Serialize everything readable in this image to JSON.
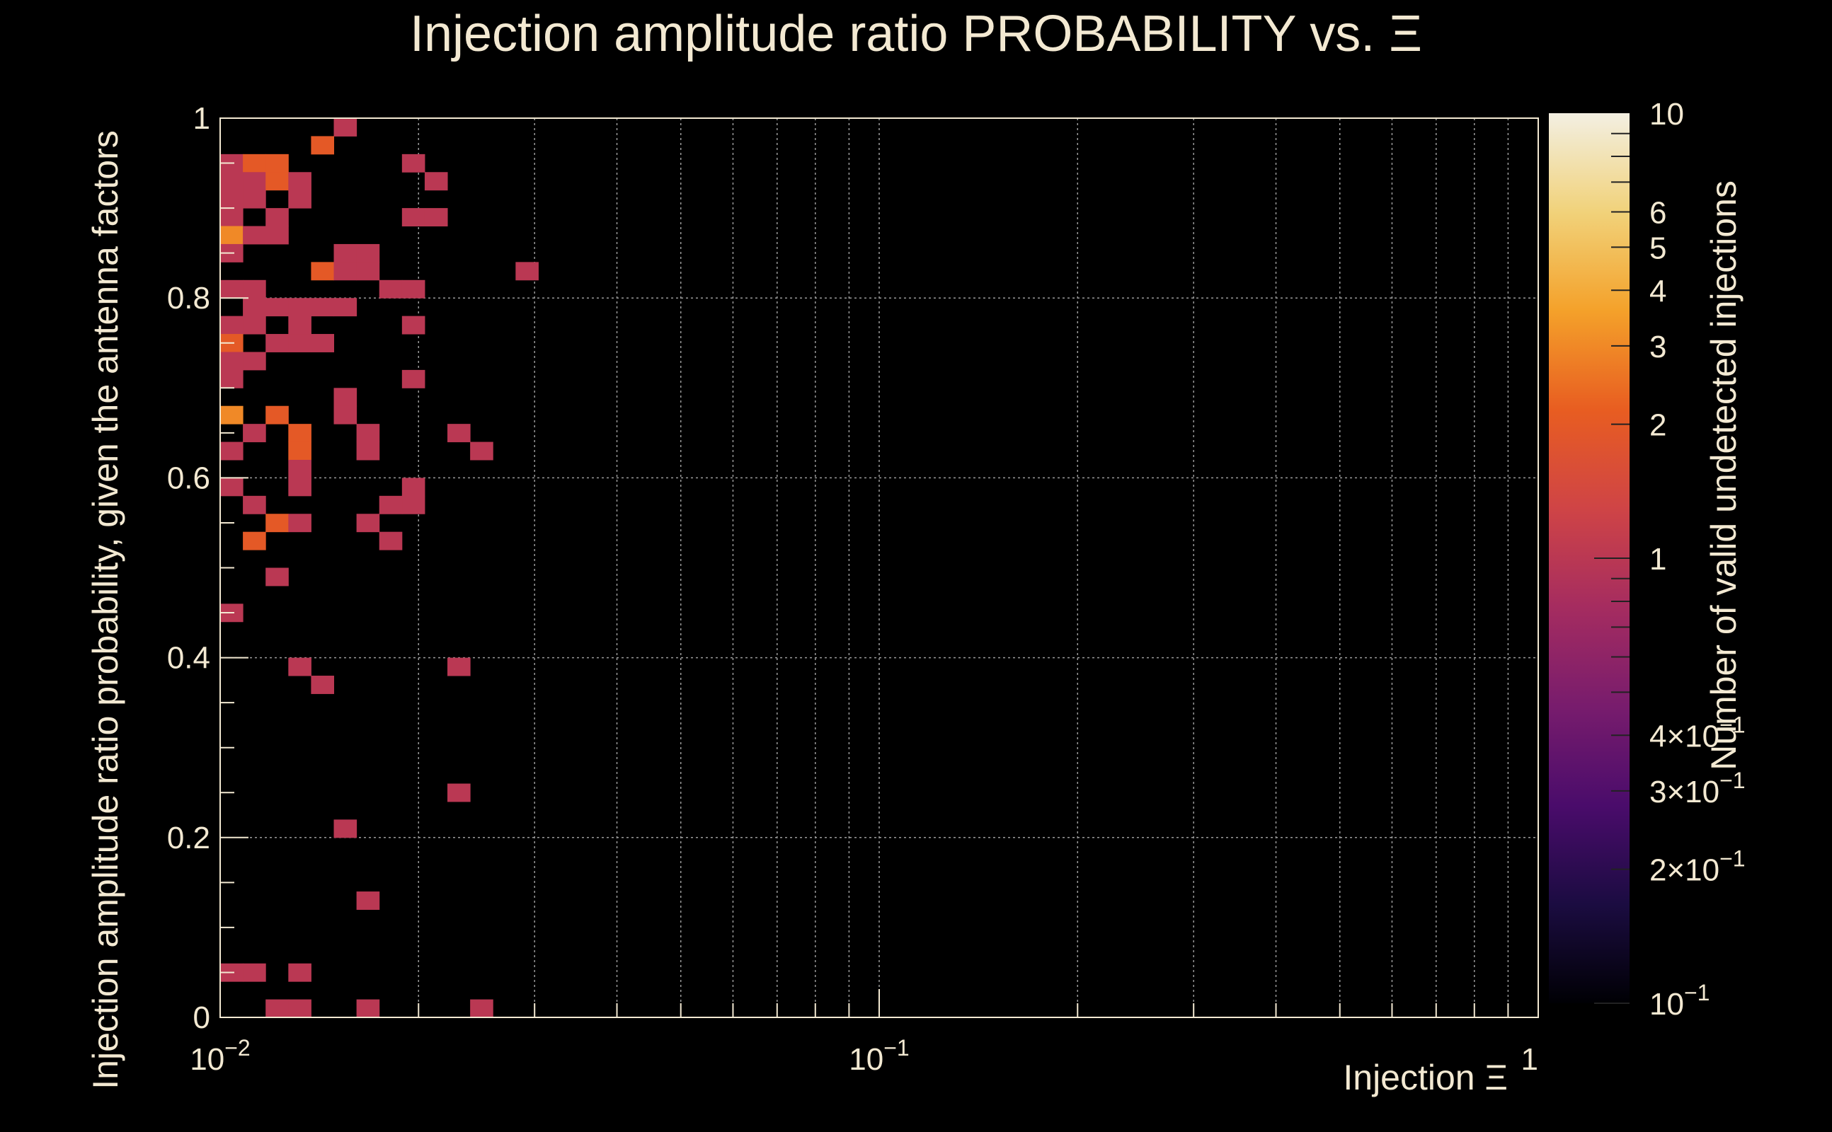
{
  "chart_data": {
    "type": "heatmap",
    "title": "Injection amplitude ratio PROBABILITY vs.  Ξ",
    "xlabel": "Injection Ξ",
    "ylabel": "Injection amplitude ratio probability, given the antenna factors",
    "zlabel": "Number of valid undetected injections",
    "x_scale": "log",
    "xlim": [
      0.01,
      1
    ],
    "ylim": [
      0,
      1
    ],
    "z_scale": "log",
    "zlim": [
      0.1,
      10
    ],
    "grid": true,
    "x_tick_labels": [
      {
        "value": 0.01,
        "base": "10",
        "exp": "−2"
      },
      {
        "value": 0.1,
        "base": "10",
        "exp": "−1"
      },
      {
        "value": 1,
        "base": "1",
        "exp": ""
      }
    ],
    "y_tick_labels": [
      "0",
      "0.2",
      "0.4",
      "0.6",
      "0.8",
      "1"
    ],
    "y_tick_values": [
      0,
      0.2,
      0.4,
      0.6,
      0.8,
      1
    ],
    "z_tick_labels": [
      {
        "value": 10,
        "mantissa": "10",
        "exp": ""
      },
      {
        "value": 6,
        "mantissa": "6",
        "exp": ""
      },
      {
        "value": 5,
        "mantissa": "5",
        "exp": ""
      },
      {
        "value": 4,
        "mantissa": "4",
        "exp": ""
      },
      {
        "value": 3,
        "mantissa": "3",
        "exp": ""
      },
      {
        "value": 2,
        "mantissa": "2",
        "exp": ""
      },
      {
        "value": 1,
        "mantissa": "1",
        "exp": ""
      },
      {
        "value": 0.4,
        "mantissa": "4×10",
        "exp": "−1"
      },
      {
        "value": 0.3,
        "mantissa": "3×10",
        "exp": "−1"
      },
      {
        "value": 0.2,
        "mantissa": "2×10",
        "exp": "−1"
      },
      {
        "value": 0.1,
        "mantissa": "10",
        "exp": "−1"
      }
    ],
    "colormap": [
      "#000004",
      "#1b0c41",
      "#4a0c6b",
      "#781c6d",
      "#a52c60",
      "#cf4446",
      "#e85d21",
      "#f4a12a",
      "#f1d27a",
      "#f3efe2"
    ],
    "bin_columns": 58,
    "bin_rows": 50,
    "bins": [
      {
        "i": 0,
        "j": 47,
        "v": 1
      },
      {
        "i": 1,
        "j": 47,
        "v": 2
      },
      {
        "i": 0,
        "j": 46,
        "v": 1
      },
      {
        "i": 1,
        "j": 46,
        "v": 1
      },
      {
        "i": 2,
        "j": 46,
        "v": 2
      },
      {
        "i": 3,
        "j": 46,
        "v": 1
      },
      {
        "i": 0,
        "j": 45,
        "v": 1
      },
      {
        "i": 1,
        "j": 45,
        "v": 1
      },
      {
        "i": 3,
        "j": 45,
        "v": 1
      },
      {
        "i": 2,
        "j": 47,
        "v": 2
      },
      {
        "i": 0,
        "j": 44,
        "v": 1
      },
      {
        "i": 2,
        "j": 44,
        "v": 1
      },
      {
        "i": 0,
        "j": 43,
        "v": 3
      },
      {
        "i": 1,
        "j": 43,
        "v": 1
      },
      {
        "i": 2,
        "j": 43,
        "v": 1
      },
      {
        "i": 0,
        "j": 42,
        "v": 1
      },
      {
        "i": 5,
        "j": 49,
        "v": 1
      },
      {
        "i": 4,
        "j": 48,
        "v": 2
      },
      {
        "i": 4,
        "j": 41,
        "v": 2
      },
      {
        "i": 5,
        "j": 42,
        "v": 1
      },
      {
        "i": 6,
        "j": 42,
        "v": 1
      },
      {
        "i": 5,
        "j": 41,
        "v": 1
      },
      {
        "i": 6,
        "j": 41,
        "v": 1
      },
      {
        "i": 7,
        "j": 40,
        "v": 1
      },
      {
        "i": 8,
        "j": 40,
        "v": 1
      },
      {
        "i": 0,
        "j": 40,
        "v": 1
      },
      {
        "i": 1,
        "j": 40,
        "v": 1
      },
      {
        "i": 1,
        "j": 39,
        "v": 1
      },
      {
        "i": 2,
        "j": 39,
        "v": 1
      },
      {
        "i": 3,
        "j": 39,
        "v": 1
      },
      {
        "i": 4,
        "j": 39,
        "v": 1
      },
      {
        "i": 5,
        "j": 39,
        "v": 1
      },
      {
        "i": 0,
        "j": 38,
        "v": 1
      },
      {
        "i": 1,
        "j": 38,
        "v": 1
      },
      {
        "i": 3,
        "j": 38,
        "v": 1
      },
      {
        "i": 0,
        "j": 37,
        "v": 2
      },
      {
        "i": 2,
        "j": 37,
        "v": 1
      },
      {
        "i": 3,
        "j": 37,
        "v": 1
      },
      {
        "i": 4,
        "j": 37,
        "v": 1
      },
      {
        "i": 0,
        "j": 36,
        "v": 1
      },
      {
        "i": 1,
        "j": 36,
        "v": 1
      },
      {
        "i": 0,
        "j": 35,
        "v": 1
      },
      {
        "i": 5,
        "j": 34,
        "v": 1
      },
      {
        "i": 0,
        "j": 33,
        "v": 3
      },
      {
        "i": 2,
        "j": 33,
        "v": 2
      },
      {
        "i": 5,
        "j": 33,
        "v": 1
      },
      {
        "i": 1,
        "j": 32,
        "v": 1
      },
      {
        "i": 3,
        "j": 32,
        "v": 2
      },
      {
        "i": 6,
        "j": 32,
        "v": 1
      },
      {
        "i": 0,
        "j": 31,
        "v": 1
      },
      {
        "i": 3,
        "j": 31,
        "v": 2
      },
      {
        "i": 6,
        "j": 31,
        "v": 1
      },
      {
        "i": 3,
        "j": 30,
        "v": 1
      },
      {
        "i": 0,
        "j": 29,
        "v": 1
      },
      {
        "i": 3,
        "j": 29,
        "v": 1
      },
      {
        "i": 1,
        "j": 28,
        "v": 1
      },
      {
        "i": 2,
        "j": 27,
        "v": 2
      },
      {
        "i": 3,
        "j": 27,
        "v": 1
      },
      {
        "i": 6,
        "j": 27,
        "v": 1
      },
      {
        "i": 1,
        "j": 26,
        "v": 2
      },
      {
        "i": 2,
        "j": 24,
        "v": 1
      },
      {
        "i": 0,
        "j": 22,
        "v": 1
      },
      {
        "i": 3,
        "j": 19,
        "v": 1
      },
      {
        "i": 4,
        "j": 18,
        "v": 1
      },
      {
        "i": 5,
        "j": 10,
        "v": 1
      },
      {
        "i": 6,
        "j": 6,
        "v": 1
      },
      {
        "i": 0,
        "j": 2,
        "v": 1
      },
      {
        "i": 1,
        "j": 2,
        "v": 1
      },
      {
        "i": 3,
        "j": 2,
        "v": 1
      },
      {
        "i": 2,
        "j": 0,
        "v": 1
      },
      {
        "i": 3,
        "j": 0,
        "v": 1
      },
      {
        "i": 6,
        "j": 0,
        "v": 1
      },
      {
        "i": 8,
        "j": 47,
        "v": 1
      },
      {
        "i": 9,
        "j": 46,
        "v": 1
      },
      {
        "i": 8,
        "j": 44,
        "v": 1
      },
      {
        "i": 9,
        "j": 44,
        "v": 1
      },
      {
        "i": 8,
        "j": 38,
        "v": 1
      },
      {
        "i": 8,
        "j": 35,
        "v": 1
      },
      {
        "i": 8,
        "j": 29,
        "v": 1
      },
      {
        "i": 8,
        "j": 28,
        "v": 1
      },
      {
        "i": 7,
        "j": 28,
        "v": 1
      },
      {
        "i": 7,
        "j": 26,
        "v": 1
      },
      {
        "i": 10,
        "j": 32,
        "v": 1
      },
      {
        "i": 11,
        "j": 31,
        "v": 1
      },
      {
        "i": 10,
        "j": 19,
        "v": 1
      },
      {
        "i": 10,
        "j": 12,
        "v": 1
      },
      {
        "i": 11,
        "j": 0,
        "v": 1
      },
      {
        "i": 13,
        "j": 41,
        "v": 1
      }
    ]
  }
}
